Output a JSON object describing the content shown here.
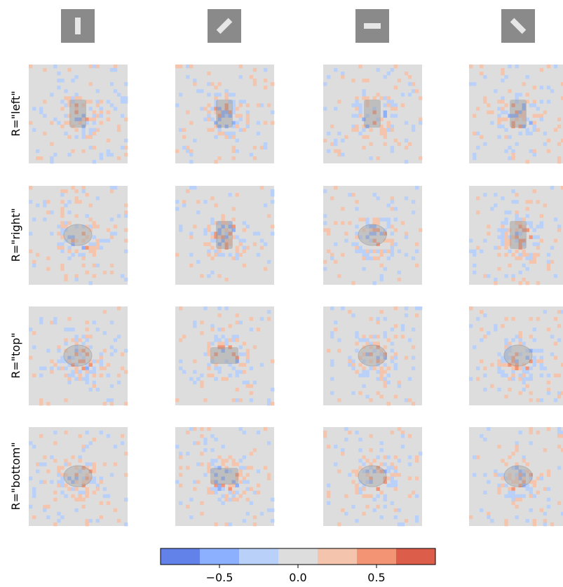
{
  "chart_data": {
    "type": "heatmap-grid",
    "row_labels": [
      "R=\"left\"",
      "R=\"right\"",
      "R=\"top\"",
      "R=\"bottom\""
    ],
    "colorbar": {
      "bounds": [
        -0.875,
        -0.625,
        -0.375,
        -0.125,
        0.125,
        0.375,
        0.625,
        0.875
      ],
      "colors": [
        "#6282ea",
        "#8db0fe",
        "#b9d0f9",
        "#dddddd",
        "#f5c4ac",
        "#f39475",
        "#dc5d4a"
      ],
      "lim": [
        -0.875,
        0.875
      ],
      "ticks": [
        {
          "value": -0.5,
          "label": "−0.5"
        },
        {
          "value": 0.0,
          "label": "0.0"
        },
        {
          "value": 0.5,
          "label": "0.5"
        }
      ]
    }
  }
}
